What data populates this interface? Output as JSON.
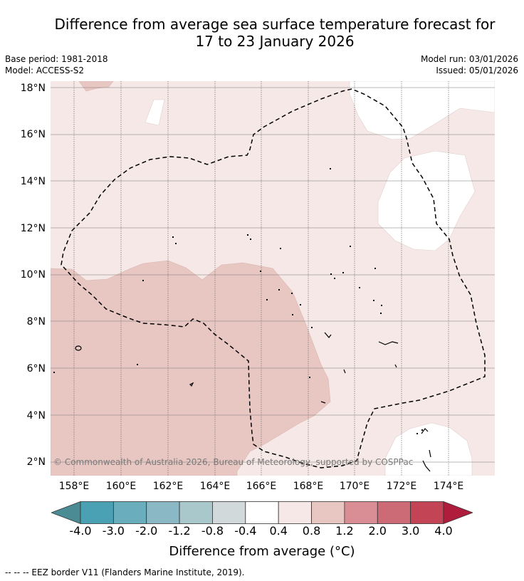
{
  "title_line1": "Difference from average sea surface temperature forecast for",
  "title_line2": "17 to 23 January 2026",
  "base_period": "Base period: 1981-2018",
  "model": "Model: ACCESS-S2",
  "model_run": "Model run: 03/01/2026",
  "issued": "Issued: 05/01/2026",
  "copyright": "© Commonwealth of Australia 2026, Bureau of Meteorology, supported by COSPPac",
  "map": {
    "lat_labels": [
      "18°N",
      "16°N",
      "14°N",
      "12°N",
      "10°N",
      "8°N",
      "6°N",
      "4°N",
      "2°N"
    ],
    "lon_labels": [
      "158°E",
      "160°E",
      "162°E",
      "164°E",
      "166°E",
      "168°E",
      "170°E",
      "172°E",
      "174°E"
    ]
  },
  "colorbar": {
    "title": "Difference from average (°C)",
    "tick_labels": [
      "-4.0",
      "-3.0",
      "-2.0",
      "-1.2",
      "-0.8",
      "-0.4",
      "0.4",
      "0.8",
      "1.2",
      "2.0",
      "3.0",
      "4.0"
    ],
    "colors": [
      "#4a8b94",
      "#4aa1b4",
      "#6aadbc",
      "#8ab8c4",
      "#a9c8cc",
      "#d1d9db",
      "#ffffff",
      "#f5e8e6",
      "#e8c7c3",
      "#d98e96",
      "#cc6a75",
      "#c24455",
      "#b01c3c"
    ]
  },
  "legend_eez": "-- -- -- EEZ border V11 (Flanders Marine Institute, 2019)."
}
